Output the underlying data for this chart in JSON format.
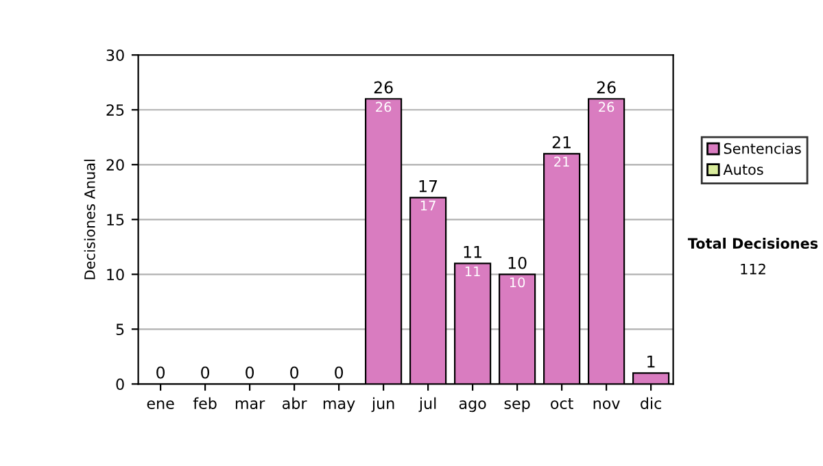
{
  "chart_data": {
    "type": "bar",
    "stacked": true,
    "ylabel": "Decisiones Anual",
    "categories": [
      "ene",
      "feb",
      "mar",
      "abr",
      "may",
      "jun",
      "jul",
      "ago",
      "sep",
      "oct",
      "nov",
      "dic"
    ],
    "series": [
      {
        "name": "Sentencias",
        "color": "#d97cc0",
        "values": [
          0,
          0,
          0,
          0,
          0,
          26,
          17,
          11,
          10,
          21,
          26,
          1
        ],
        "value_labels": [
          null,
          null,
          null,
          null,
          null,
          "26",
          "17",
          "11",
          "10",
          "21",
          "26",
          null
        ]
      },
      {
        "name": "Autos",
        "color": "#d9ec9c",
        "values": [
          0,
          0,
          0,
          0,
          0,
          0,
          0,
          0,
          0,
          0,
          0,
          0
        ]
      }
    ],
    "totals": [
      "0",
      "0",
      "0",
      "0",
      "0",
      "26",
      "17",
      "11",
      "10",
      "21",
      "26",
      "1"
    ],
    "ylim": [
      0,
      30
    ],
    "yticks": [
      0,
      5,
      10,
      15,
      20,
      25,
      30
    ],
    "grid": "y",
    "legend": "right",
    "annotations": [
      "Total Decisiones",
      "112"
    ]
  }
}
